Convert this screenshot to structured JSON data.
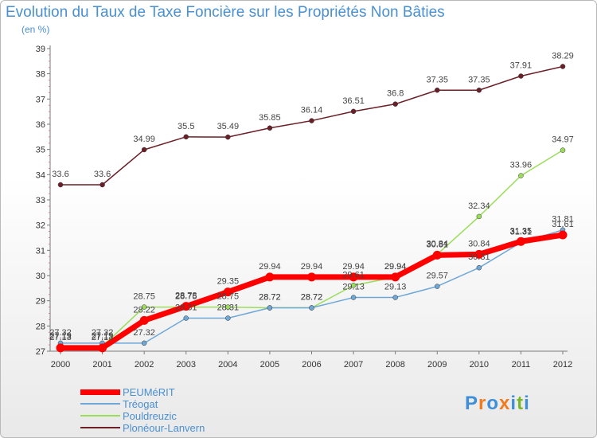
{
  "header": {
    "title": "Evolution du Taux de Taxe Foncière sur les Propriétés Non Bâties",
    "unit": "(en %)"
  },
  "chart_data": {
    "type": "line",
    "x": [
      "2000",
      "2001",
      "2002",
      "2003",
      "2004",
      "2005",
      "2006",
      "2007",
      "2008",
      "2009",
      "2010",
      "2011",
      "2012"
    ],
    "ylim": [
      27,
      39
    ],
    "yticks": [
      27,
      28,
      29,
      30,
      31,
      32,
      33,
      34,
      35,
      36,
      37,
      38,
      39
    ],
    "grid": false,
    "legend_position": "bottom-left",
    "series": [
      {
        "name": "Plonéour-Lanvern",
        "color": "#6b1f27",
        "width": 1.5,
        "values": [
          33.6,
          33.6,
          34.99,
          35.5,
          35.49,
          35.85,
          36.14,
          36.51,
          36.8,
          37.35,
          37.35,
          37.91,
          38.29
        ],
        "labels": [
          "33.6",
          "33.6",
          "34.99",
          "35.5",
          "35.49",
          "35.85",
          "36.14",
          "36.51",
          "36.8",
          "37.35",
          "37.35",
          "37.91",
          "38.29"
        ]
      },
      {
        "name": "Pouldreuzic",
        "color": "#9bdd5a",
        "width": 1.5,
        "values": [
          27.19,
          27.19,
          28.75,
          28.75,
          28.75,
          28.72,
          28.72,
          29.61,
          29.94,
          30.84,
          32.34,
          33.96,
          34.97
        ],
        "labels": [
          "27.19",
          "27.19",
          "28.75",
          "28.75",
          "28.75",
          "28.72",
          "28.72",
          "29.61",
          "29.94",
          "30.84",
          "32.34",
          "33.96",
          "34.97"
        ]
      },
      {
        "name": "Tréogat",
        "color": "#6fa7d6",
        "width": 1.5,
        "values": [
          27.32,
          27.32,
          27.32,
          28.31,
          28.31,
          28.72,
          28.72,
          29.13,
          29.13,
          29.57,
          30.31,
          31.31,
          31.81
        ],
        "labels": [
          "27.32",
          "27.32",
          "27.32",
          "28.31",
          "28.31",
          "28.72",
          "28.72",
          "29.13",
          "29.13",
          "29.57",
          "30.31",
          "31.31",
          "31.81"
        ]
      },
      {
        "name": "PEUMéRIT",
        "color": "#ff0000",
        "width": 7,
        "values": [
          27.13,
          27.13,
          28.22,
          28.78,
          29.35,
          29.94,
          29.94,
          29.94,
          29.94,
          30.81,
          30.84,
          31.35,
          31.61
        ],
        "labels": [
          "27.13",
          "27.13",
          "28.22",
          "28.78",
          "29.35",
          "29.94",
          "29.94",
          "29.94",
          "29.94",
          "30.81",
          "30.84",
          "31.35",
          "31.61"
        ]
      }
    ]
  },
  "legend": {
    "items": [
      {
        "label": "PEUMéRIT",
        "color": "#ff0000",
        "width": 7
      },
      {
        "label": "Tréogat",
        "color": "#6fa7d6",
        "width": 1.5
      },
      {
        "label": "Pouldreuzic",
        "color": "#9bdd5a",
        "width": 1.5
      },
      {
        "label": "Plonéour-Lanvern",
        "color": "#6b1f27",
        "width": 1.5
      }
    ]
  },
  "logo": {
    "text": "Proxiti",
    "colors": [
      "#3e8fd8",
      "#f07c1f",
      "#3e8fd8",
      "#f07c1f",
      "#3e8fd8",
      "#76b82a",
      "#3e8fd8"
    ]
  }
}
